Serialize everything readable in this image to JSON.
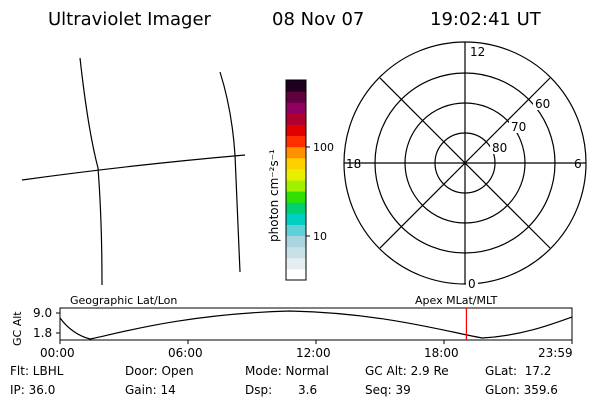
{
  "header": {
    "title": "Ultraviolet Imager",
    "date": "08 Nov 07",
    "time": "19:02:41 UT"
  },
  "colorbar": {
    "axis_label": "photon cm⁻²s⁻¹",
    "tick_100": "100",
    "tick_10": "10",
    "colors": [
      "#ffffff",
      "#e4eef0",
      "#c8e0e6",
      "#aad4e0",
      "#60d0d8",
      "#00d0c0",
      "#00d070",
      "#30e000",
      "#a0f000",
      "#e8f000",
      "#ffd000",
      "#ff9000",
      "#ff3000",
      "#e00000",
      "#b00030",
      "#900060",
      "#60003c",
      "#200020"
    ]
  },
  "polar": {
    "top_label": "12",
    "left_label": "18",
    "right_label": "6",
    "bottom_label": "0",
    "lat_60": "60",
    "lat_70": "70",
    "lat_80": "80"
  },
  "altitude_panel": {
    "geo_label": "Geographic Lat/Lon",
    "apex_label": "Apex MLat/MLT",
    "y_axis_label": "GC Alt",
    "y_max": "9.0",
    "y_min": "1.8",
    "ticks": [
      "00:00",
      "06:00",
      "12:00",
      "18:00",
      "23:59"
    ],
    "marker_color": "#ff0000",
    "marker_time_hours": 19.05
  },
  "info": {
    "flt": "Flt: LBHL",
    "ip": "IP: 36.0",
    "door": "Door: Open",
    "gain": "Gain: 14",
    "mode": "Mode: Normal",
    "dsp_label": "Dsp:",
    "dsp_value": "3.6",
    "gc_alt": "GC Alt: 2.9 Re",
    "seq": "Seq: 39",
    "glat": "GLat:  17.2",
    "glon": "GLon: 359.6"
  }
}
